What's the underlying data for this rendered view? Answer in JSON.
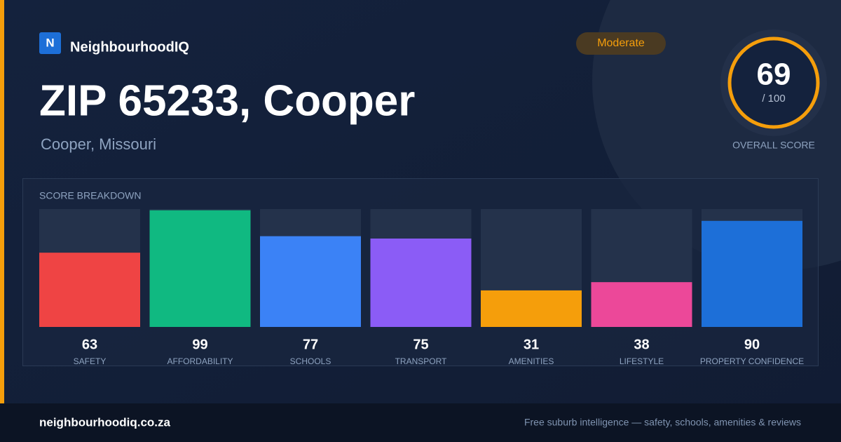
{
  "brand": {
    "logo": "N",
    "name": "NeighbourhoodIQ"
  },
  "title": "ZIP 65233, Cooper",
  "subtitle": "Cooper, Missouri",
  "badge": "Moderate",
  "score": {
    "value": 69,
    "out_of": "/ 100",
    "caption": "OVERALL SCORE"
  },
  "chart_data": {
    "type": "bar",
    "title": "SCORE BREAKDOWN",
    "categories": [
      "SAFETY",
      "AFFORDABILITY",
      "SCHOOLS",
      "TRANSPORT",
      "AMENITIES",
      "LIFESTYLE",
      "PROPERTY CONFIDENCE"
    ],
    "values": [
      63,
      99,
      77,
      75,
      31,
      38,
      90
    ],
    "colors": [
      "#ef4444",
      "#10b981",
      "#3b82f6",
      "#8b5cf6",
      "#f59e0b",
      "#ec4899",
      "#1d6fd8"
    ],
    "ylim": [
      0,
      100
    ]
  },
  "footer": {
    "url": "neighbourhoodiq.co.za",
    "tagline": "Free suburb intelligence — safety, schools, amenities & reviews"
  }
}
